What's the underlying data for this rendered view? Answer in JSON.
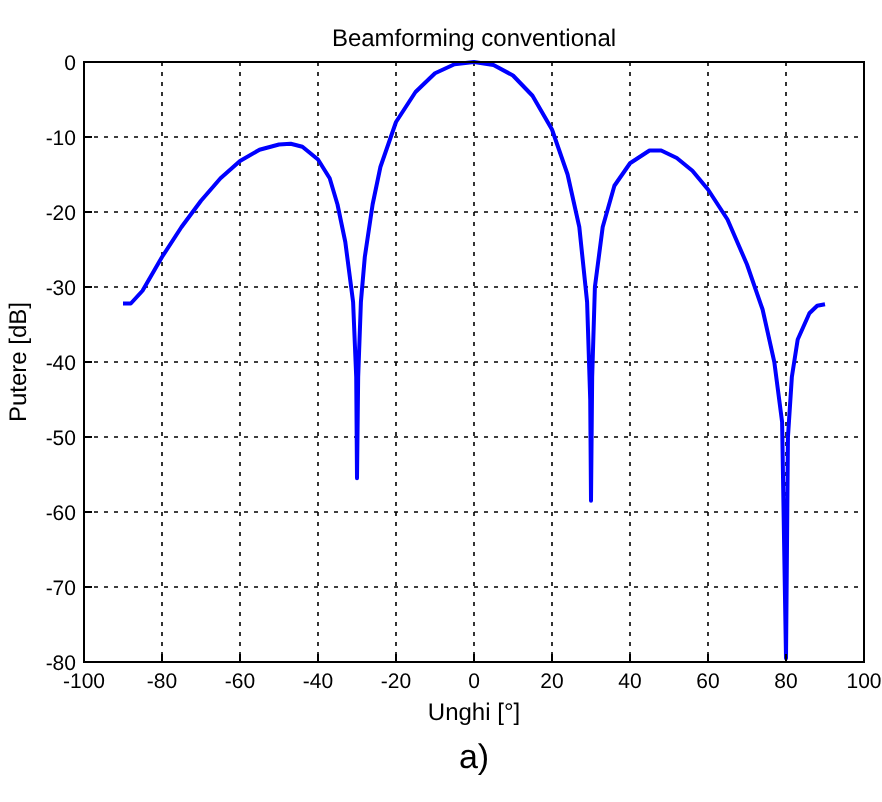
{
  "chart_data": {
    "type": "line",
    "title": "Beamforming conventional",
    "xlabel": "Unghi [°]",
    "ylabel": "Putere [dB]",
    "annotations": [
      "a)"
    ],
    "x": [
      -90,
      -88,
      -85,
      -80,
      -75,
      -70,
      -65,
      -60,
      -55,
      -50,
      -47,
      -44,
      -40,
      -37,
      -35,
      -33,
      -31,
      -30.2,
      -30,
      -29.7,
      -29,
      -28,
      -26,
      -24,
      -20,
      -15,
      -10,
      -5,
      0,
      5,
      10,
      15,
      20,
      24,
      27,
      29,
      29.8,
      30,
      30.3,
      31,
      33,
      36,
      40,
      45,
      48,
      52,
      56,
      60,
      65,
      70,
      74,
      77,
      79,
      80,
      80.5,
      81.5,
      83,
      86,
      88,
      90
    ],
    "series": [
      {
        "color": "#0000ff",
        "values": [
          -32.2,
          -32.2,
          -30.5,
          -26,
          -22,
          -18.5,
          -15.5,
          -13.2,
          -11.7,
          -11,
          -10.9,
          -11.3,
          -13,
          -15.5,
          -19,
          -24,
          -32,
          -42,
          -55.5,
          -42,
          -32,
          -26,
          -19,
          -14,
          -8,
          -4,
          -1.5,
          -0.3,
          0,
          -0.4,
          -1.8,
          -4.5,
          -9,
          -15,
          -22,
          -32,
          -45,
          -58.5,
          -42,
          -30,
          -22,
          -16.5,
          -13.5,
          -11.8,
          -11.8,
          -12.8,
          -14.5,
          -17,
          -21,
          -27,
          -33,
          -40,
          -48,
          -79.5,
          -50,
          -42,
          -37,
          -33.5,
          -32.5,
          -32.3
        ]
      }
    ],
    "xlim": [
      -100,
      100
    ],
    "xticks": [
      -100,
      -80,
      -60,
      -40,
      -20,
      0,
      20,
      40,
      60,
      80,
      100
    ],
    "ylim": [
      -80,
      0
    ],
    "yticks": [
      -80,
      -70,
      -60,
      -50,
      -40,
      -30,
      -20,
      -10,
      0
    ],
    "grid": true,
    "line_style": "solid",
    "marker": "none"
  }
}
